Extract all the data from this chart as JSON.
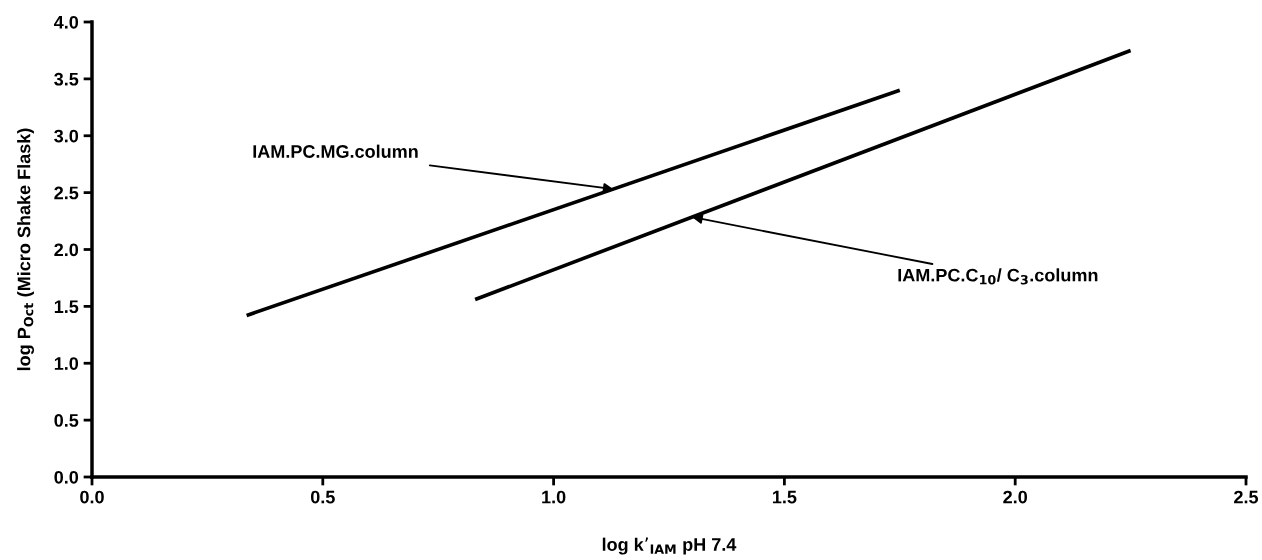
{
  "chart_data": {
    "type": "line",
    "xlabel": "log k’$_{IAM}$ pH 7.4",
    "ylabel": "log P$_{Oct}$ (Micro Shake Flask)",
    "xlim": [
      0,
      2.5
    ],
    "xticks": [
      {
        "value": 0,
        "label": "0.0"
      },
      0.5,
      {
        "value": 1,
        "label": "1.0"
      },
      1.5,
      {
        "value": 2,
        "label": "2.0"
      },
      2.5
    ],
    "ylim": [
      0,
      4
    ],
    "yticks": [
      {
        "value": 0,
        "label": "0.0"
      },
      0.5,
      {
        "value": 1,
        "label": "1.0"
      },
      1.5,
      {
        "value": 2,
        "label": "2.0"
      },
      2.5,
      {
        "value": 3,
        "label": "3.0"
      },
      3.5,
      {
        "value": 4,
        "label": "4.0"
      }
    ],
    "series": [
      {
        "color": "#000000",
        "x": [
          0.335,
          1.75
        ],
        "values": [
          1.42,
          3.4
        ]
      },
      {
        "color": "#000000",
        "x": [
          0.83,
          2.25
        ],
        "values": [
          1.56,
          3.75
        ]
      }
    ],
    "annotations": [
      {
        "text": "IAM.PC.MG.column",
        "x": 1.13,
        "y": 2.53
      },
      {
        "text": "IAM.PC.C$_{10}$/ C$_{3}$.column",
        "x": 1.3,
        "y": 2.285
      }
    ],
    "grid": false,
    "marker": "none",
    "line_style": "solid"
  }
}
